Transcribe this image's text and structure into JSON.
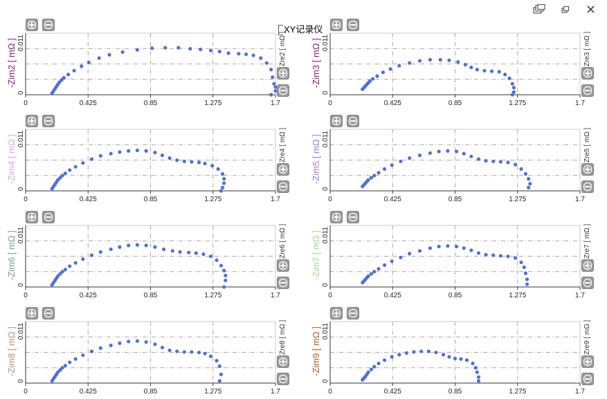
{
  "window": {
    "title": "XY记录仪",
    "controls": [
      {
        "name": "tile-windows-icon"
      },
      {
        "name": "restore-icon"
      },
      {
        "name": "close-icon"
      }
    ]
  },
  "colors": {
    "marker": "#4f6fd8",
    "grid": "#a8a8a8",
    "axis": "#333333"
  },
  "x_ticks": [
    "0",
    "0.425",
    "0.85",
    "1.275",
    "1.7"
  ],
  "y_ticks": [
    "0",
    "0.011"
  ],
  "chart_data": [
    {
      "type": "scatter",
      "ylabel": "-Zim2 [ mΩ ]",
      "ylabel_color": "#8a1a80",
      "rlabel": "Zre2 [ mΩ ]",
      "xlim": [
        0,
        1.7
      ],
      "ylim": [
        0,
        0.011
      ],
      "x": [
        0.18,
        0.19,
        0.2,
        0.21,
        0.22,
        0.23,
        0.245,
        0.26,
        0.29,
        0.33,
        0.38,
        0.43,
        0.5,
        0.57,
        0.66,
        0.76,
        0.86,
        0.95,
        1.04,
        1.12,
        1.19,
        1.26,
        1.32,
        1.38,
        1.45,
        1.5,
        1.55,
        1.6,
        1.64,
        1.67,
        1.68,
        1.69,
        1.7,
        1.7,
        1.67
      ],
      "y": [
        0.0003,
        0.0007,
        0.0011,
        0.0015,
        0.0019,
        0.0023,
        0.0027,
        0.0031,
        0.0037,
        0.0044,
        0.0052,
        0.0059,
        0.0067,
        0.0073,
        0.0078,
        0.0082,
        0.0085,
        0.0086,
        0.0086,
        0.0084,
        0.0083,
        0.0081,
        0.0079,
        0.0076,
        0.0075,
        0.0074,
        0.0072,
        0.0067,
        0.0058,
        0.0046,
        0.0032,
        0.002,
        0.0014,
        0.0007,
        0.0
      ]
    },
    {
      "type": "scatter",
      "ylabel": "-Zim3 [ mΩ ]",
      "ylabel_color": "#8a1a80",
      "rlabel": "Zre3 [ mΩ ]",
      "xlim": [
        0,
        1.7
      ],
      "ylim": [
        0,
        0.011
      ],
      "x": [
        0.22,
        0.23,
        0.24,
        0.25,
        0.26,
        0.27,
        0.29,
        0.32,
        0.36,
        0.41,
        0.47,
        0.54,
        0.61,
        0.68,
        0.75,
        0.81,
        0.87,
        0.92,
        0.96,
        1.0,
        1.05,
        1.1,
        1.15,
        1.19,
        1.22,
        1.24,
        1.25,
        1.25,
        1.24
      ],
      "y": [
        0.001,
        0.0013,
        0.0016,
        0.0019,
        0.0022,
        0.0025,
        0.0029,
        0.0034,
        0.0041,
        0.0047,
        0.0053,
        0.0058,
        0.0062,
        0.0064,
        0.0064,
        0.0063,
        0.006,
        0.0055,
        0.005,
        0.0046,
        0.0044,
        0.0043,
        0.0042,
        0.0037,
        0.003,
        0.002,
        0.0013,
        0.0005,
        0.0
      ]
    },
    {
      "type": "scatter",
      "ylabel": "-Zim4 [ mΩ ]",
      "ylabel_color": "#e0a9dc",
      "rlabel": "Zre4 [ mΩ ]",
      "xlim": [
        0,
        1.7
      ],
      "ylim": [
        0,
        0.011
      ],
      "x": [
        0.18,
        0.19,
        0.2,
        0.21,
        0.22,
        0.235,
        0.25,
        0.27,
        0.3,
        0.34,
        0.39,
        0.45,
        0.51,
        0.58,
        0.64,
        0.7,
        0.76,
        0.82,
        0.88,
        0.93,
        0.98,
        1.03,
        1.08,
        1.13,
        1.18,
        1.22,
        1.27,
        1.31,
        1.34,
        1.35,
        1.35,
        1.34,
        1.33
      ],
      "y": [
        0.0004,
        0.0008,
        0.0012,
        0.0016,
        0.002,
        0.0024,
        0.0028,
        0.0032,
        0.0038,
        0.0044,
        0.0051,
        0.0058,
        0.0064,
        0.0068,
        0.0071,
        0.0073,
        0.0074,
        0.0073,
        0.007,
        0.0065,
        0.006,
        0.0056,
        0.0054,
        0.0053,
        0.0052,
        0.005,
        0.0046,
        0.004,
        0.0031,
        0.0022,
        0.0014,
        0.0006,
        0.0
      ]
    },
    {
      "type": "scatter",
      "ylabel": "-Zim5 [ mΩ ]",
      "ylabel_color": "#a27ad6",
      "rlabel": "Zre5 [ mΩ ]",
      "xlim": [
        0,
        1.7
      ],
      "ylim": [
        0,
        0.011
      ],
      "x": [
        0.22,
        0.23,
        0.24,
        0.25,
        0.26,
        0.28,
        0.3,
        0.33,
        0.37,
        0.42,
        0.48,
        0.54,
        0.61,
        0.68,
        0.74,
        0.8,
        0.86,
        0.91,
        0.96,
        1.01,
        1.06,
        1.11,
        1.16,
        1.21,
        1.26,
        1.3,
        1.33,
        1.35,
        1.36,
        1.35
      ],
      "y": [
        0.0008,
        0.0011,
        0.0014,
        0.0017,
        0.002,
        0.0024,
        0.0028,
        0.0033,
        0.004,
        0.0047,
        0.0054,
        0.006,
        0.0065,
        0.0069,
        0.0072,
        0.0073,
        0.0072,
        0.0068,
        0.0063,
        0.0058,
        0.0055,
        0.0054,
        0.0053,
        0.0052,
        0.0048,
        0.004,
        0.0031,
        0.0022,
        0.0013,
        0.0006
      ]
    },
    {
      "type": "scatter",
      "ylabel": "-Zim6 [ mΩ ]",
      "ylabel_color": "#7a9e9a",
      "rlabel": "Zre6 [ mΩ ]",
      "xlim": [
        0,
        1.7
      ],
      "ylim": [
        0,
        0.011
      ],
      "x": [
        0.18,
        0.19,
        0.2,
        0.21,
        0.22,
        0.235,
        0.25,
        0.27,
        0.3,
        0.34,
        0.39,
        0.45,
        0.51,
        0.58,
        0.64,
        0.7,
        0.76,
        0.82,
        0.88,
        0.94,
        1.0,
        1.05,
        1.11,
        1.16,
        1.21,
        1.26,
        1.3,
        1.33,
        1.35,
        1.36,
        1.36,
        1.35
      ],
      "y": [
        0.0004,
        0.0008,
        0.0012,
        0.0016,
        0.002,
        0.0024,
        0.0028,
        0.0032,
        0.0038,
        0.0044,
        0.0051,
        0.0058,
        0.0064,
        0.0069,
        0.0073,
        0.0076,
        0.0077,
        0.0076,
        0.0073,
        0.0069,
        0.0066,
        0.0064,
        0.0063,
        0.0062,
        0.006,
        0.0056,
        0.0049,
        0.0039,
        0.003,
        0.0021,
        0.0012,
        0.0
      ]
    },
    {
      "type": "scatter",
      "ylabel": "-Zim7 [ mΩ ]",
      "ylabel_color": "#a8d890",
      "rlabel": "Zre7 [ mΩ ]",
      "xlim": [
        0,
        1.7
      ],
      "ylim": [
        0,
        0.011
      ],
      "x": [
        0.22,
        0.23,
        0.24,
        0.25,
        0.26,
        0.28,
        0.3,
        0.33,
        0.37,
        0.42,
        0.48,
        0.54,
        0.61,
        0.68,
        0.74,
        0.8,
        0.86,
        0.91,
        0.96,
        1.01,
        1.06,
        1.11,
        1.16,
        1.21,
        1.26,
        1.3,
        1.32,
        1.33,
        1.34,
        1.34
      ],
      "y": [
        0.0008,
        0.0011,
        0.0014,
        0.0017,
        0.002,
        0.0024,
        0.0028,
        0.0033,
        0.004,
        0.0047,
        0.0054,
        0.0061,
        0.0066,
        0.0071,
        0.0074,
        0.0075,
        0.0074,
        0.0071,
        0.0067,
        0.0062,
        0.0059,
        0.0058,
        0.0057,
        0.0056,
        0.0053,
        0.0045,
        0.0036,
        0.0025,
        0.0014,
        0.0005
      ]
    },
    {
      "type": "scatter",
      "ylabel": "-Zim8 [ mΩ ]",
      "ylabel_color": "#c0907a",
      "rlabel": "Zre8 [ mΩ ]",
      "xlim": [
        0,
        1.7
      ],
      "ylim": [
        0,
        0.011
      ],
      "x": [
        0.18,
        0.19,
        0.2,
        0.21,
        0.22,
        0.235,
        0.25,
        0.27,
        0.3,
        0.34,
        0.39,
        0.45,
        0.51,
        0.58,
        0.64,
        0.7,
        0.76,
        0.82,
        0.88,
        0.93,
        0.98,
        1.03,
        1.08,
        1.13,
        1.18,
        1.22,
        1.26,
        1.3,
        1.32,
        1.33,
        1.32
      ],
      "y": [
        0.0004,
        0.0008,
        0.0012,
        0.0016,
        0.002,
        0.0024,
        0.0028,
        0.0032,
        0.0038,
        0.0044,
        0.0051,
        0.0058,
        0.0064,
        0.0069,
        0.0073,
        0.0076,
        0.0077,
        0.0075,
        0.0071,
        0.0065,
        0.006,
        0.0058,
        0.0057,
        0.0057,
        0.0056,
        0.0054,
        0.0049,
        0.0041,
        0.0031,
        0.0016,
        0.0004
      ]
    },
    {
      "type": "scatter",
      "ylabel": "-Zim9 [ mΩ ]",
      "ylabel_color": "#b05a2a",
      "rlabel": "Zre9 [ mΩ ]",
      "xlim": [
        0,
        1.7
      ],
      "ylim": [
        0,
        0.011
      ],
      "x": [
        0.22,
        0.23,
        0.24,
        0.25,
        0.26,
        0.28,
        0.3,
        0.33,
        0.37,
        0.42,
        0.47,
        0.52,
        0.57,
        0.62,
        0.67,
        0.72,
        0.77,
        0.81,
        0.85,
        0.89,
        0.93,
        0.97,
        0.99,
        1.0,
        1.01,
        1.01
      ],
      "y": [
        0.0006,
        0.0009,
        0.0012,
        0.0016,
        0.002,
        0.0025,
        0.003,
        0.0036,
        0.0042,
        0.0048,
        0.0052,
        0.0055,
        0.0057,
        0.0058,
        0.0058,
        0.0056,
        0.0052,
        0.0048,
        0.0045,
        0.0044,
        0.0042,
        0.0036,
        0.0028,
        0.002,
        0.0011,
        0.0004
      ]
    }
  ]
}
